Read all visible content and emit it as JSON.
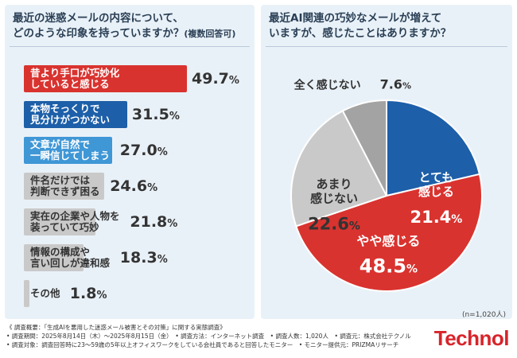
{
  "left_panel": {
    "title": "最近の迷惑メールの内容について、\nどのような印象を持っていますか？",
    "title_note": "(複数回答可)"
  },
  "right_panel": {
    "title": "最近AI関連の巧妙なメールが増えて\nいますが、感じたことはありますか？",
    "sample_note": "(n=1,020人)"
  },
  "chart_data": [
    {
      "type": "bar",
      "orientation": "horizontal",
      "categories": [
        "昔より手口が巧妙化\nしていると感じる",
        "本物そっくりで\n見分けがつかない",
        "文章が自然で\n一瞬信じてしまう",
        "件名だけでは\n判断できず困る",
        "実在の企業や人物を\n装っていて巧妙",
        "情報の構成や\n言い回しが違和感",
        "その他"
      ],
      "values": [
        49.7,
        31.5,
        27.0,
        24.6,
        21.8,
        18.3,
        1.8
      ],
      "value_labels": [
        "49.7",
        "31.5",
        "27.0",
        "24.6",
        "21.8",
        "18.3",
        "1.8"
      ],
      "unit": "%",
      "colors": [
        "#d9332f",
        "#1d5fa8",
        "#3f97d6",
        "#c9c9c9",
        "#c9c9c9",
        "#c9c9c9",
        "#c9c9c9"
      ],
      "text_colors": [
        "#ffffff",
        "#ffffff",
        "#ffffff",
        "#333333",
        "#333333",
        "#333333",
        "#333333"
      ],
      "xlim": [
        0,
        49.7
      ]
    },
    {
      "type": "pie",
      "categories": [
        "とても感じる",
        "やや感じる",
        "あまり感じない",
        "全く感じない"
      ],
      "label_lines": [
        [
          "とても",
          "感じる"
        ],
        [
          "やや感じる"
        ],
        [
          "あまり",
          "感じない"
        ],
        [
          "全く感じない"
        ]
      ],
      "values": [
        21.4,
        48.5,
        22.6,
        7.6
      ],
      "value_labels": [
        "21.4",
        "48.5",
        "22.6",
        "7.6"
      ],
      "unit": "%",
      "colors": [
        "#1d5fa8",
        "#d9332f",
        "#c9c9c9",
        "#a3a3a3"
      ],
      "text_colors": [
        "#ffffff",
        "#ffffff",
        "#333333",
        "#333333"
      ]
    }
  ],
  "footer": [
    "《 調査概要：「生成AIを悪用した迷惑メール被害とその対策」に関する実態調査》",
    "• 調査期間：2025年8月14日（木）〜2025年8月15日（金）　• 調査方法：インターネット調査　• 調査人数：1,020人　• 調査元：株式会社テクノル",
    "• 調査対象：調査回答時に23〜59歳の5年以上オフィスワークをしている会社員であると回答したモニター　• モニター提供元：PRIZMAリサーチ"
  ],
  "logo": "Technol"
}
